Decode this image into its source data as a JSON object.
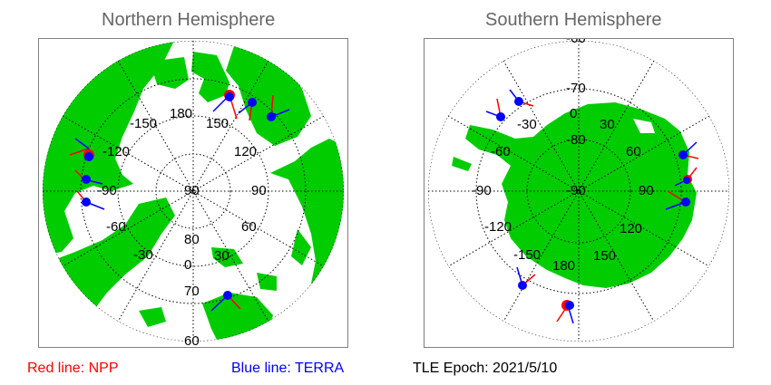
{
  "north": {
    "title": "Northern Hemisphere",
    "meridian_labels": [
      "180",
      "150",
      "120",
      "90",
      "60",
      "30",
      "0",
      "-30",
      "-60",
      "-90",
      "-120",
      "-150"
    ],
    "parallel_labels": [
      "90",
      "80",
      "70",
      "60"
    ]
  },
  "south": {
    "title": "Southern Hemisphere",
    "meridian_labels": [
      "0",
      "30",
      "60",
      "90",
      "120",
      "150",
      "180",
      "-150",
      "-120",
      "-90",
      "-60",
      "-30"
    ],
    "parallel_labels": [
      "-90",
      "-80",
      "-70",
      "-60"
    ]
  },
  "legend": {
    "npp": "Red line: NPP",
    "terra": "Blue line: TERRA",
    "epoch": "TLE Epoch: 2021/5/10"
  },
  "colors": {
    "land": "#00cc00",
    "npp": "#ff0000",
    "terra": "#0000ff",
    "title": "#666666"
  }
}
